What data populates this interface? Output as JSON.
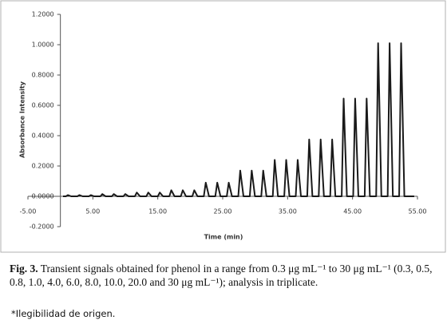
{
  "chart_data": {
    "type": "line",
    "xlabel": "Time (min)",
    "ylabel": "Absorbance Intensity",
    "color": "#1a1a1a",
    "xlim": [
      -5,
      55
    ],
    "ylim": [
      -0.2,
      1.2
    ],
    "xticks": [
      {
        "value": -5,
        "label": "-5.00"
      },
      {
        "value": 5,
        "label": "5.00"
      },
      {
        "value": 15,
        "label": "15.00"
      },
      {
        "value": 25,
        "label": "25.00"
      },
      {
        "value": 35,
        "label": "35.00"
      },
      {
        "value": 45,
        "label": "45.00"
      },
      {
        "value": 55,
        "label": "55.00"
      }
    ],
    "yticks": [
      {
        "value": -0.2,
        "label": "-0.2000"
      },
      {
        "value": 0,
        "label": "0.0000"
      },
      {
        "value": 0.2,
        "label": "0.2000"
      },
      {
        "value": 0.4,
        "label": "0.4000"
      },
      {
        "value": 0.6,
        "label": "0.6000"
      },
      {
        "value": 0.8,
        "label": "0.8000"
      },
      {
        "value": 1,
        "label": "1.0000"
      },
      {
        "value": 1.2,
        "label": "1.2000"
      }
    ],
    "grid": false,
    "x": [
      0.4,
      0.85,
      1.15,
      1.65,
      2.62,
      2.92,
      3.42,
      4.39,
      4.69,
      5.19,
      6.16,
      6.46,
      6.96,
      7.93,
      8.23,
      8.73,
      9.7,
      10.0,
      10.5,
      11.47,
      11.77,
      12.27,
      13.24,
      13.54,
      14.04,
      15.01,
      15.31,
      15.81,
      16.78,
      17.08,
      17.58,
      18.55,
      18.85,
      19.35,
      20.32,
      20.62,
      21.12,
      22.09,
      22.39,
      22.89,
      23.86,
      24.16,
      24.66,
      25.63,
      25.93,
      26.43,
      27.4,
      27.7,
      28.2,
      29.17,
      29.47,
      29.97,
      30.94,
      31.24,
      31.74,
      32.71,
      33.01,
      33.51,
      34.48,
      34.78,
      35.28,
      36.25,
      36.55,
      37.05,
      38.02,
      38.32,
      38.82,
      39.79,
      40.09,
      40.59,
      41.56,
      41.86,
      42.36,
      43.33,
      43.63,
      44.13,
      45.1,
      45.4,
      45.9,
      46.87,
      47.17,
      47.67,
      48.64,
      48.94,
      49.44,
      50.41,
      50.71,
      51.21,
      52.18,
      52.48,
      52.98,
      54.5
    ],
    "values": [
      0,
      0,
      0.008,
      0,
      0,
      0.008,
      0,
      0,
      0.008,
      0,
      0,
      0.015,
      0,
      0,
      0.015,
      0,
      0,
      0.015,
      0,
      0,
      0.025,
      0,
      0,
      0.025,
      0,
      0,
      0.025,
      0,
      0,
      0.04,
      0,
      0,
      0.04,
      0,
      0,
      0.04,
      0,
      0,
      0.09,
      0,
      0,
      0.09,
      0,
      0,
      0.09,
      0,
      0,
      0.17,
      0,
      0,
      0.17,
      0,
      0,
      0.17,
      0,
      0,
      0.24,
      0,
      0,
      0.24,
      0,
      0,
      0.24,
      0,
      0,
      0.375,
      0,
      0,
      0.375,
      0,
      0,
      0.375,
      0,
      0,
      0.645,
      0,
      0,
      0.645,
      0,
      0,
      0.645,
      0,
      0,
      1.01,
      0,
      0,
      1.01,
      0,
      0,
      1.01,
      0,
      0
    ]
  },
  "caption": {
    "label": "Fig. 3.",
    "text": "Transient signals obtained for phenol in a range from 0.3 μg mL⁻¹ to 30 μg mL⁻¹ (0.3, 0.5, 0.8, 1.0, 4.0, 6.0, 8.0, 10.0, 20.0 and 30 μg mL⁻¹); analysis in triplicate."
  },
  "note": "*Ilegibilidad de origen."
}
